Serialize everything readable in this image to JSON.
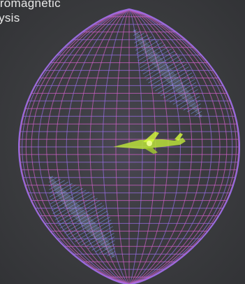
{
  "caption": {
    "line1": "ctromagnetic",
    "line2": "lysis"
  },
  "colors": {
    "background": "#3b3c3e",
    "mesh_pink": "#d060c8",
    "mesh_violet": "#9a6ee6",
    "mesh_blue": "#7aa0ff",
    "aircraft": "#d8ff3a"
  },
  "icons": {
    "sphere": "wireframe-radiation-pattern-icon",
    "aircraft": "aircraft-model-icon"
  }
}
